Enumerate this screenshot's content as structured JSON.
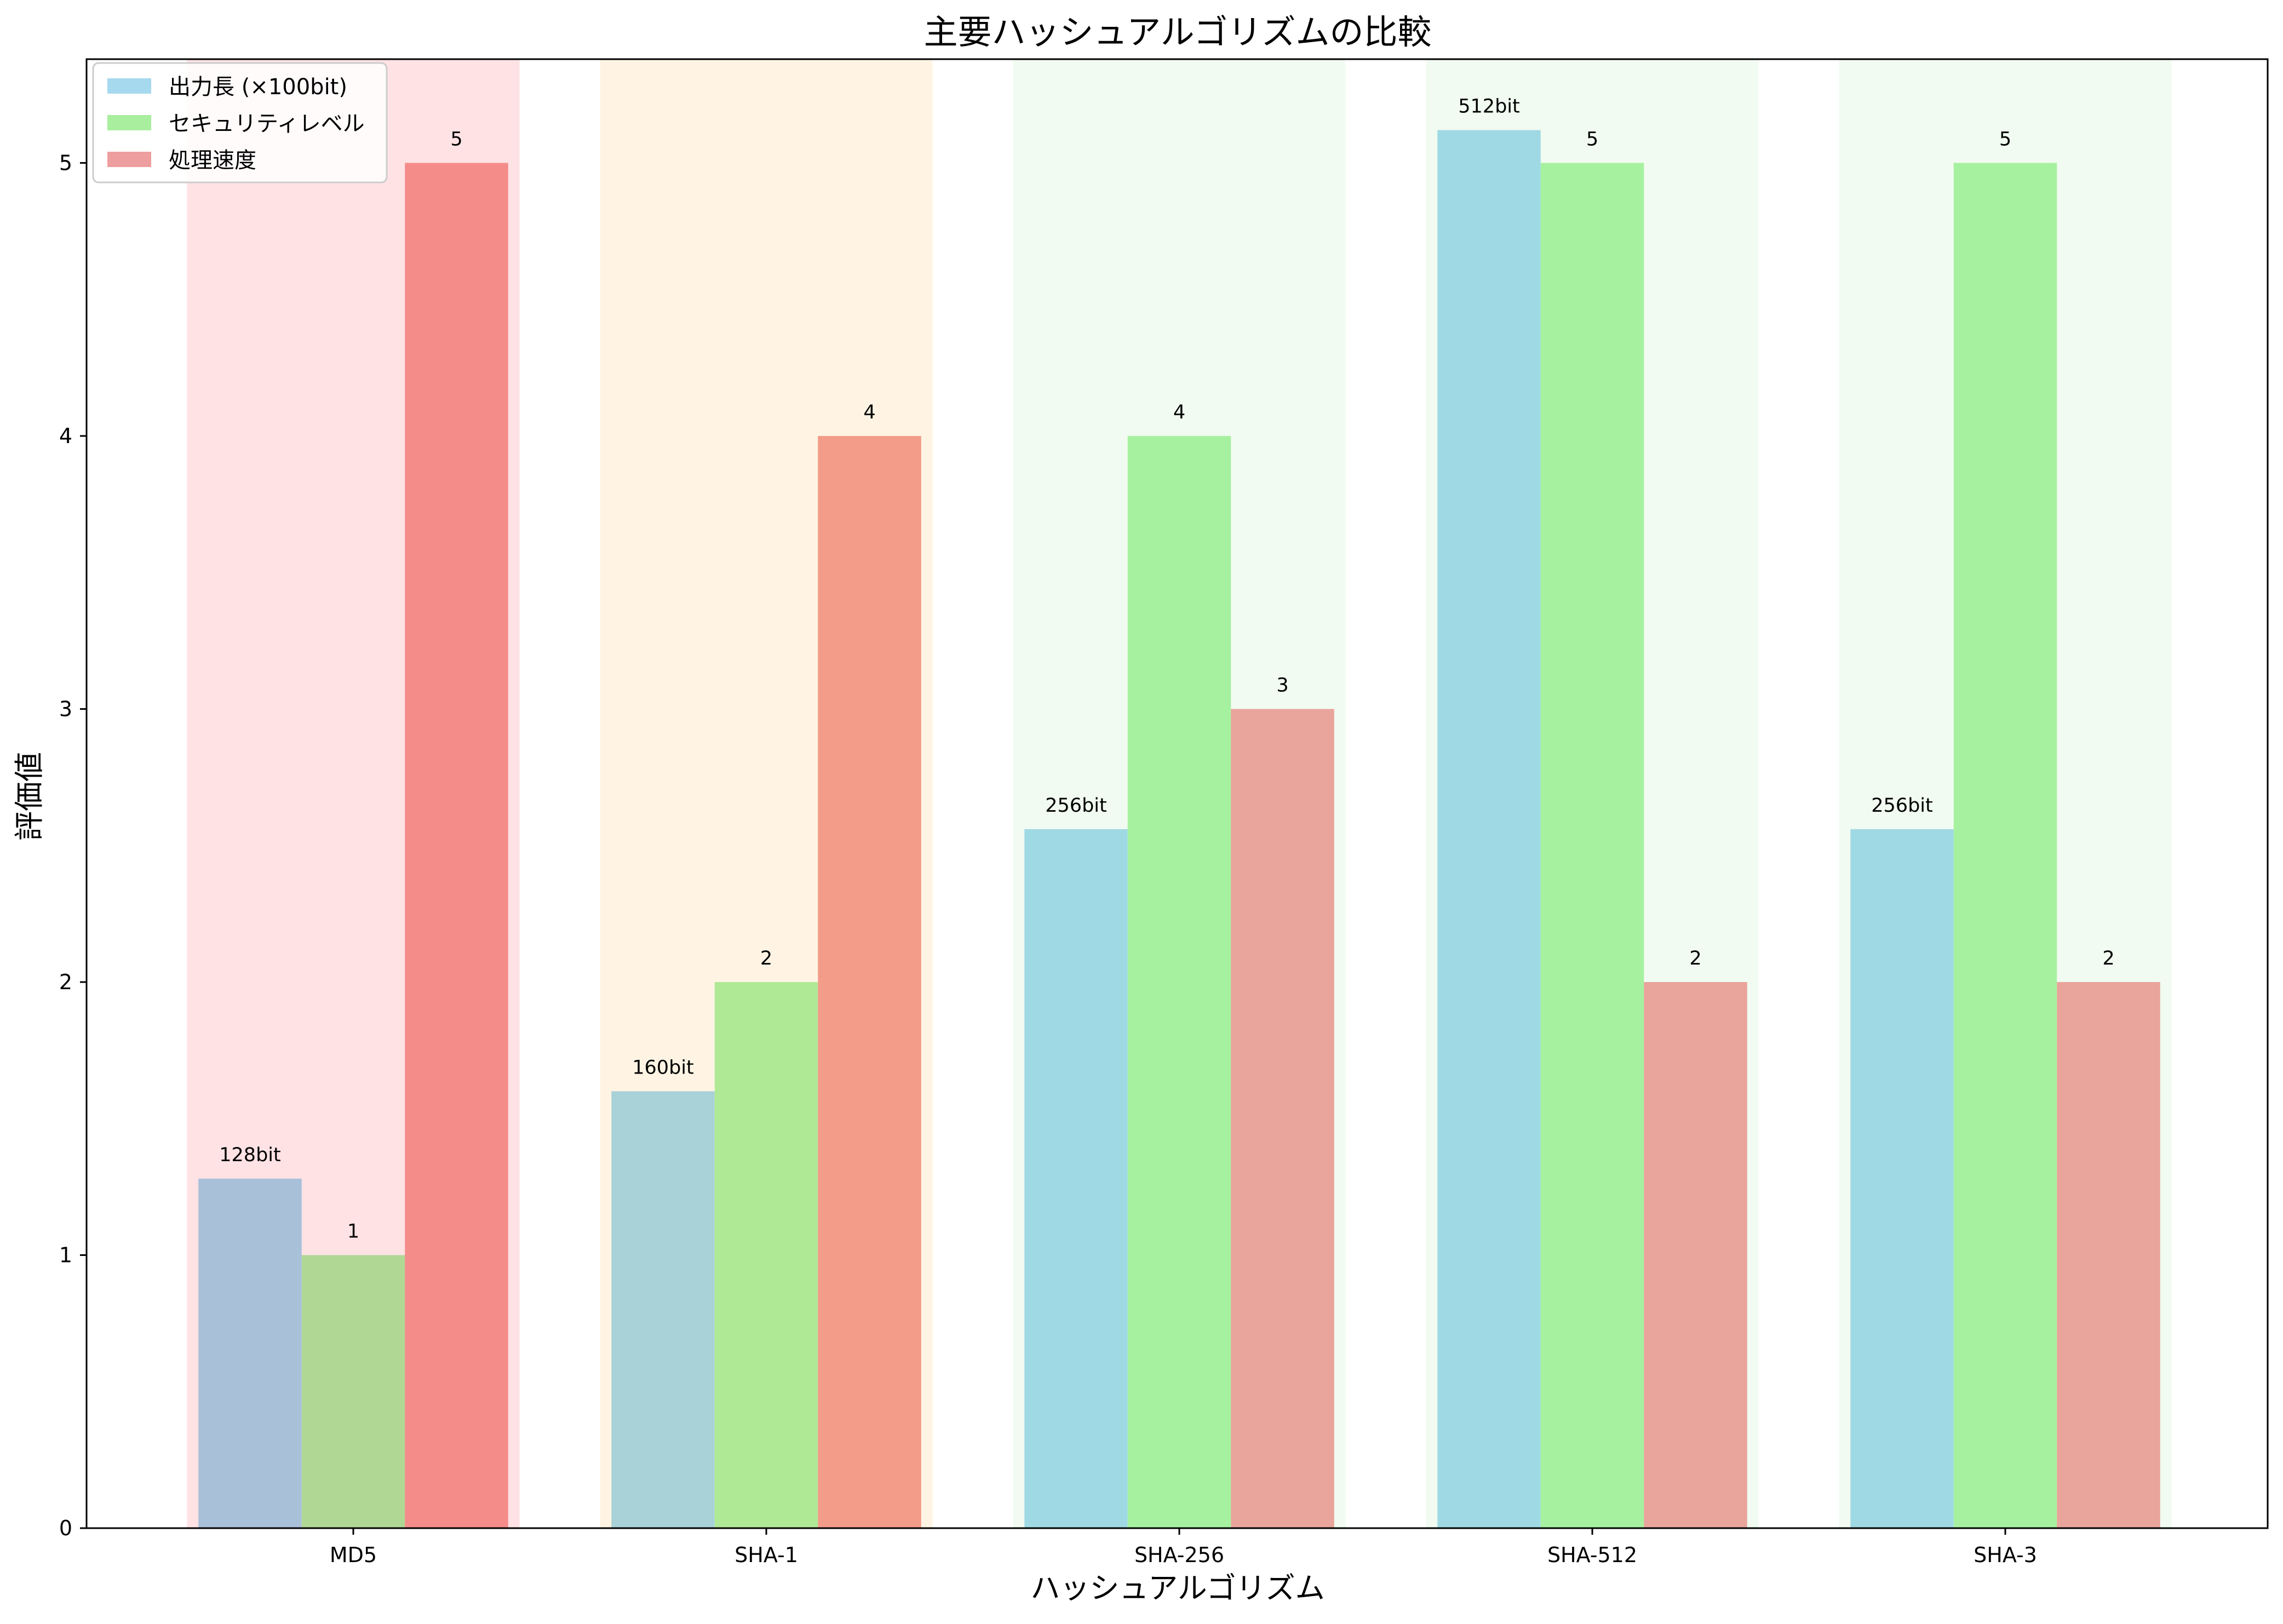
{
  "chart_data": {
    "type": "bar",
    "title": "主要ハッシュアルゴリズムの比較",
    "xlabel": "ハッシュアルゴリズム",
    "ylabel": "評価値",
    "ylim": [
      0,
      5.38
    ],
    "yticks": [
      0,
      1,
      2,
      3,
      4,
      5
    ],
    "grid": false,
    "legend_position": "top-left",
    "categories": [
      "MD5",
      "SHA-1",
      "SHA-256",
      "SHA-512",
      "SHA-3"
    ],
    "series": [
      {
        "name": "出力長 (×100bit)",
        "values": [
          1.28,
          1.6,
          2.56,
          5.12,
          2.56
        ],
        "labels": [
          "128bit",
          "160bit",
          "256bit",
          "512bit",
          "256bit"
        ],
        "legend_color": "#a6d8ee",
        "colors": [
          "#a9c0d9",
          "#a8d1d8",
          "#9fd9e4",
          "#9fd9e4",
          "#9fd9e4"
        ]
      },
      {
        "name": "セキュリティレベル",
        "values": [
          1,
          2,
          4,
          5,
          5
        ],
        "labels": [
          "1",
          "2",
          "4",
          "5",
          "5"
        ],
        "legend_color": "#a8ee9e",
        "colors": [
          "#b0d794",
          "#b0e996",
          "#a6f19f",
          "#a6f19f",
          "#a6f19f"
        ]
      },
      {
        "name": "処理速度",
        "values": [
          5,
          4,
          3,
          2,
          2
        ],
        "labels": [
          "5",
          "4",
          "3",
          "2",
          "2"
        ],
        "legend_color": "#ee9e9e",
        "colors": [
          "#f48c8a",
          "#f39c8a",
          "#e9a49b",
          "#e9a49b",
          "#e9a49b"
        ]
      }
    ],
    "background_bands": [
      "#ffe2e4",
      "#fff4e3",
      "#f1fbf1",
      "#f1fbf1",
      "#f1fbf1"
    ]
  }
}
